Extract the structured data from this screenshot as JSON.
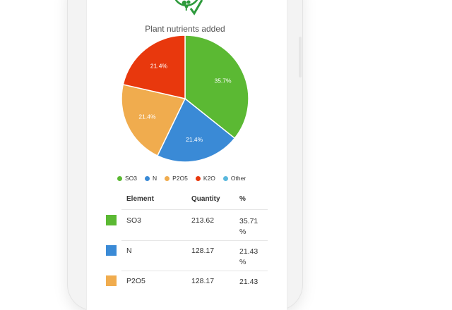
{
  "chart": {
    "title": "Plant nutrients added",
    "legend": [
      {
        "label": "SO3",
        "color": "#5bb933"
      },
      {
        "label": "N",
        "color": "#3a8ad6"
      },
      {
        "label": "P2O5",
        "color": "#f0ac4e"
      },
      {
        "label": "K2O",
        "color": "#e8380d"
      },
      {
        "label": "Other",
        "color": "#5ab8dd"
      }
    ]
  },
  "chart_data": {
    "type": "pie",
    "title": "Plant nutrients added",
    "categories": [
      "SO3",
      "N",
      "P2O5",
      "K2O",
      "Other"
    ],
    "values": [
      35.7,
      21.4,
      21.4,
      21.4,
      0
    ],
    "labels": [
      "35.7%",
      "21.4%",
      "21.4%",
      "21.4%",
      ""
    ],
    "colors": [
      "#5bb933",
      "#3a8ad6",
      "#f0ac4e",
      "#e8380d",
      "#5ab8dd"
    ],
    "legend_position": "bottom"
  },
  "table": {
    "headers": {
      "element": "Element",
      "quantity": "Quantity",
      "percent": "%"
    },
    "rows": [
      {
        "color": "#5bb933",
        "element": "SO3",
        "quantity": "213.62",
        "percent": "35.71 %"
      },
      {
        "color": "#3a8ad6",
        "element": "N",
        "quantity": "128.17",
        "percent": "21.43 %"
      },
      {
        "color": "#f0ac4e",
        "element": "P2O5",
        "quantity": "128.17",
        "percent": "21.43"
      }
    ]
  },
  "logo": {
    "icon": "leaf-checkmark-icon",
    "color": "#2e9a3c"
  }
}
